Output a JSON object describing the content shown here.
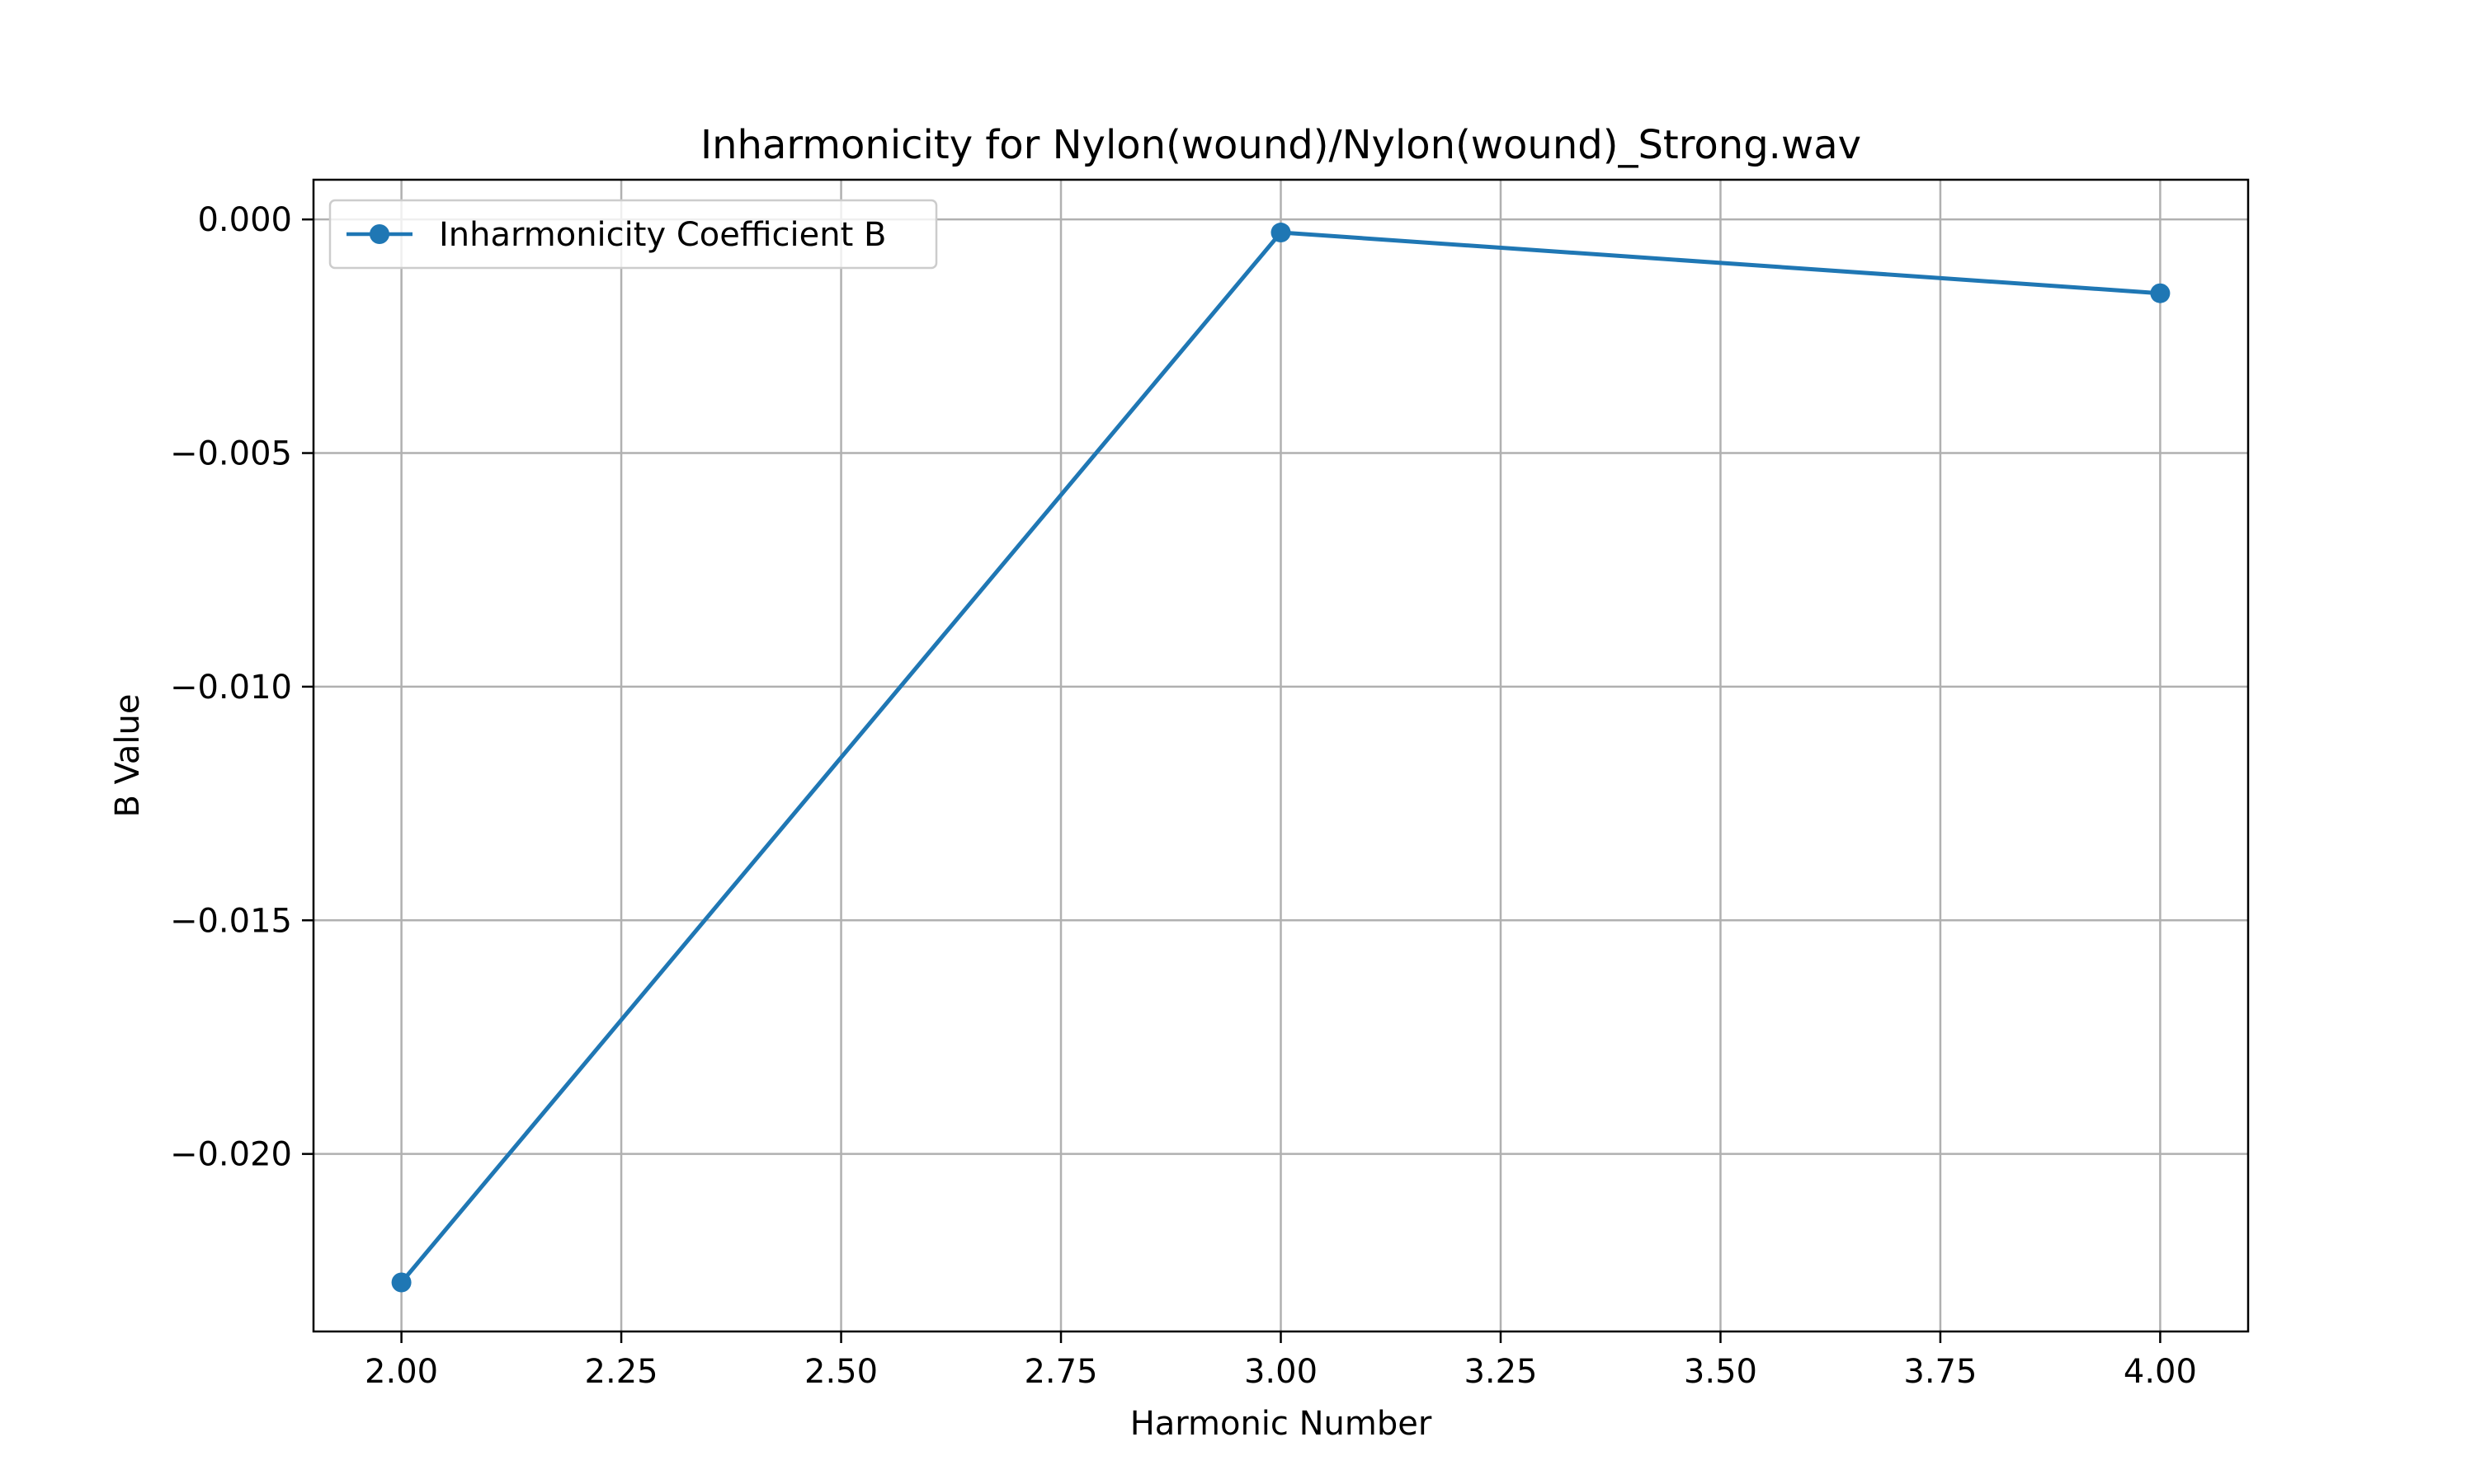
{
  "chart_data": {
    "type": "line",
    "title": "Inharmonicity for Nylon(wound)/Nylon(wound)_Strong.wav",
    "xlabel": "Harmonic Number",
    "ylabel": "B Value",
    "xlim": [
      1.9,
      4.1
    ],
    "ylim": [
      -0.0238,
      0.00085
    ],
    "x_ticks": [
      2.0,
      2.25,
      2.5,
      2.75,
      3.0,
      3.25,
      3.5,
      3.75,
      4.0
    ],
    "x_tick_labels": [
      "2.00",
      "2.25",
      "2.50",
      "2.75",
      "3.00",
      "3.25",
      "3.50",
      "3.75",
      "4.00"
    ],
    "y_ticks": [
      0.0,
      -0.005,
      -0.01,
      -0.015,
      -0.02
    ],
    "y_tick_labels": [
      "0.000",
      "−0.005",
      "−0.010",
      "−0.015",
      "−0.020"
    ],
    "grid": true,
    "legend_position": "top-left",
    "series": [
      {
        "name": "Inharmonicity Coefficient B",
        "color": "#1f77b4",
        "marker": "circle",
        "x": [
          2,
          3,
          4
        ],
        "y": [
          -0.02275,
          -0.00028,
          -0.00158
        ]
      }
    ]
  }
}
